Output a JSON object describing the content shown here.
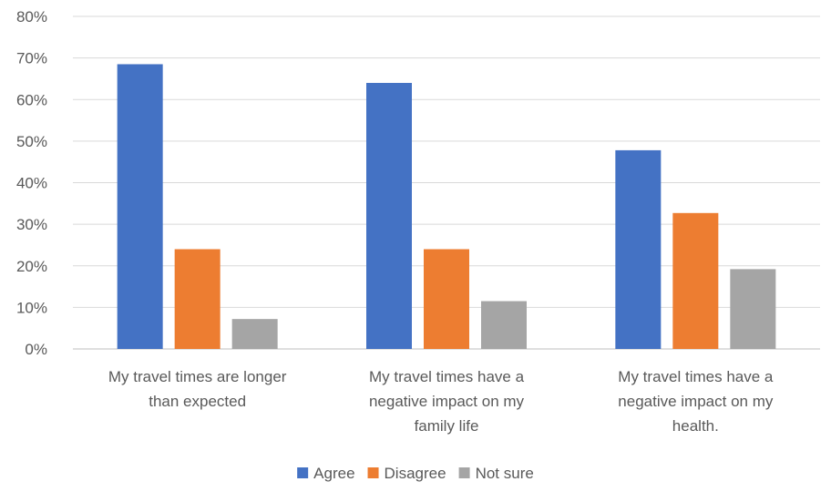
{
  "chart_data": {
    "type": "bar",
    "categories": [
      [
        "My travel times are longer",
        "than expected"
      ],
      [
        "My travel times have a",
        "negative impact on my",
        "family life"
      ],
      [
        "My travel times have a",
        "negative impact on my",
        "health."
      ]
    ],
    "series": [
      {
        "name": "Agree",
        "color": "#4472C4",
        "values": [
          0.685,
          0.64,
          0.478
        ]
      },
      {
        "name": "Disagree",
        "color": "#ED7D31",
        "values": [
          0.24,
          0.24,
          0.327
        ]
      },
      {
        "name": "Not sure",
        "color": "#A5A5A5",
        "values": [
          0.072,
          0.115,
          0.192
        ]
      }
    ],
    "yticks": [
      "0%",
      "10%",
      "20%",
      "30%",
      "40%",
      "50%",
      "60%",
      "70%",
      "80%"
    ],
    "ylim": [
      0,
      0.8
    ],
    "grid": true,
    "legend_position": "bottom",
    "title": "",
    "xlabel": "",
    "ylabel": ""
  }
}
